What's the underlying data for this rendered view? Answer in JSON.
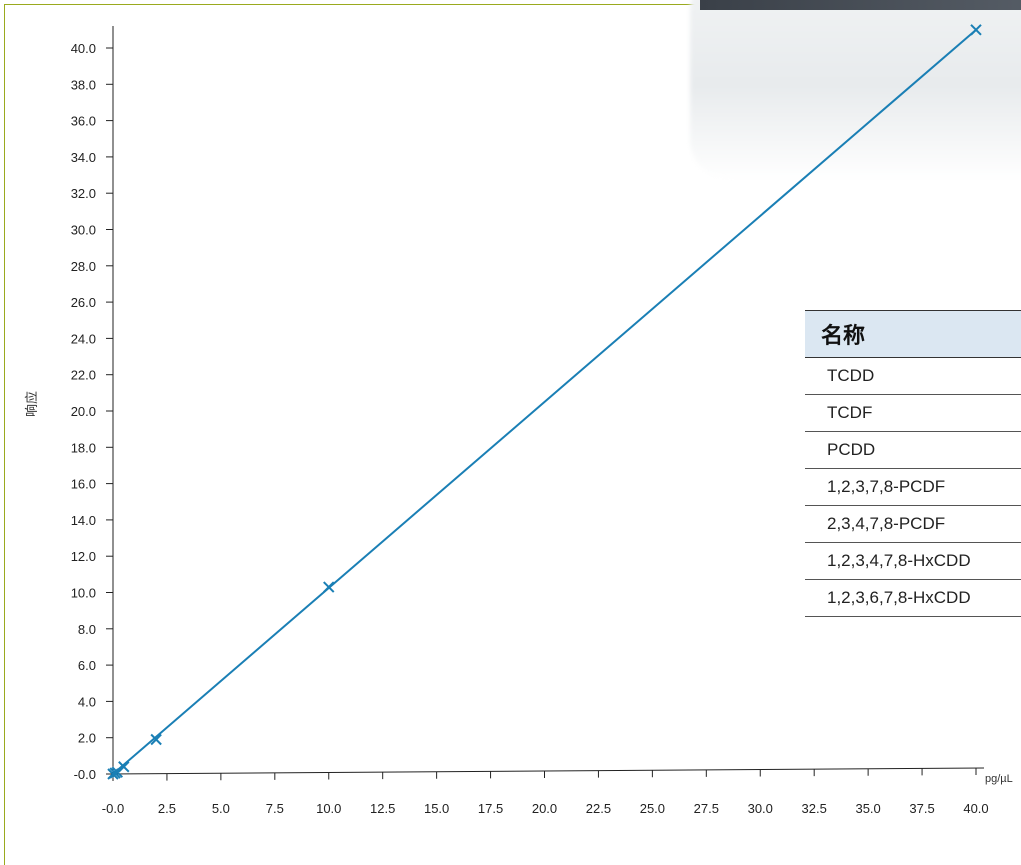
{
  "chart_data": {
    "type": "line",
    "title": "",
    "xlabel": "",
    "x_unit": "pg/µL",
    "ylabel": "响应",
    "xlim": [
      0,
      40
    ],
    "ylim": [
      0,
      40
    ],
    "x_ticks": [
      "-0.0",
      "2.5",
      "5.0",
      "7.5",
      "10.0",
      "12.5",
      "15.0",
      "17.5",
      "20.0",
      "22.5",
      "25.0",
      "27.5",
      "30.0",
      "32.5",
      "35.0",
      "37.5",
      "40.0"
    ],
    "y_ticks": [
      "-0.0",
      "2.0",
      "4.0",
      "6.0",
      "8.0",
      "10.0",
      "12.0",
      "14.0",
      "16.0",
      "18.0",
      "20.0",
      "22.0",
      "24.0",
      "26.0",
      "28.0",
      "30.0",
      "32.0",
      "34.0",
      "36.0",
      "38.0",
      "40.0"
    ],
    "series": [
      {
        "points": [
          {
            "x": 0.0,
            "y": 0.0
          },
          {
            "x": 0.1,
            "y": 0.05
          },
          {
            "x": 0.2,
            "y": 0.1
          },
          {
            "x": 0.5,
            "y": 0.4
          },
          {
            "x": 2.0,
            "y": 1.9
          },
          {
            "x": 10.0,
            "y": 10.3
          },
          {
            "x": 40.0,
            "y": 41.0
          }
        ],
        "fit": {
          "x0": 0.0,
          "y0": 0.0,
          "x1": 40.0,
          "y1": 41.0
        }
      }
    ],
    "colors": {
      "series": "#1a7fb5",
      "axis": "#222222",
      "frame": "#9aaa1e"
    }
  },
  "table": {
    "header": "名称",
    "rows": [
      "TCDD",
      "TCDF",
      "PCDD",
      "1,2,3,7,8-PCDF",
      "2,3,4,7,8-PCDF",
      "1,2,3,4,7,8-HxCDD",
      "1,2,3,6,7,8-HxCDD"
    ]
  }
}
